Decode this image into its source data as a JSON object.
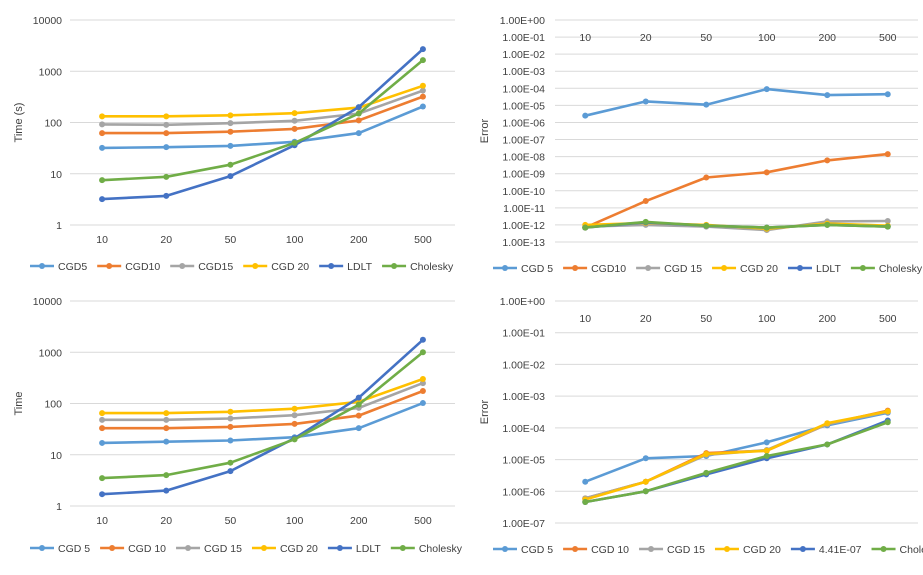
{
  "chart_data": [
    {
      "type": "line",
      "panel": "top-left",
      "ylabel": "Time (s)",
      "yscale": "log",
      "ylim": [
        1,
        10000
      ],
      "ytick_labels": [
        "1",
        "10",
        "100",
        "1000",
        "10000"
      ],
      "ytick_values": [
        1,
        10,
        100,
        1000,
        10000
      ],
      "categories": [
        "10",
        "20",
        "50",
        "100",
        "200",
        "500"
      ],
      "x_axis_position": "bottom",
      "grid": true,
      "legend": "bottom",
      "series": [
        {
          "name": "CGD5",
          "color": "#5B9BD5",
          "values": [
            32,
            33,
            35,
            42,
            62,
            205
          ]
        },
        {
          "name": "CGD10",
          "color": "#ED7D31",
          "values": [
            62,
            62,
            66,
            75,
            110,
            320
          ]
        },
        {
          "name": "CGD15",
          "color": "#A5A5A5",
          "values": [
            92,
            90,
            97,
            108,
            150,
            420
          ]
        },
        {
          "name": "CGD 20",
          "color": "#FFC000",
          "values": [
            132,
            132,
            138,
            152,
            195,
            520
          ]
        },
        {
          "name": "LDLT",
          "color": "#4472C4",
          "values": [
            3.2,
            3.7,
            9,
            36,
            200,
            2700
          ]
        },
        {
          "name": "Cholesky",
          "color": "#70AD47",
          "values": [
            7.5,
            8.7,
            15,
            40,
            150,
            1650
          ]
        }
      ]
    },
    {
      "type": "line",
      "panel": "top-right",
      "ylabel": "Error",
      "yscale": "log",
      "ylim": [
        1e-13,
        1
      ],
      "ytick_labels": [
        "1.00E-13",
        "1.00E-12",
        "1.00E-11",
        "1.00E-10",
        "1.00E-09",
        "1.00E-08",
        "1.00E-07",
        "1.00E-06",
        "1.00E-05",
        "1.00E-04",
        "1.00E-03",
        "1.00E-02",
        "1.00E-01",
        "1.00E+00"
      ],
      "ytick_values": [
        1e-13,
        1e-12,
        1e-11,
        1e-10,
        1e-09,
        1e-08,
        1e-07,
        1e-06,
        1e-05,
        0.0001,
        0.001,
        0.01,
        0.1,
        1
      ],
      "categories": [
        "10",
        "20",
        "50",
        "100",
        "200",
        "500"
      ],
      "x_axis_position": "top",
      "grid": true,
      "legend": "bottom",
      "series": [
        {
          "name": "CGD 5",
          "color": "#5B9BD5",
          "values": [
            2.5e-06,
            1.7e-05,
            1.1e-05,
            9e-05,
            4e-05,
            4.5e-05
          ]
        },
        {
          "name": "CGD10",
          "color": "#ED7D31",
          "values": [
            7e-13,
            2.5e-11,
            6e-10,
            1.2e-09,
            6e-09,
            1.4e-08
          ]
        },
        {
          "name": "CGD 15",
          "color": "#A5A5A5",
          "values": [
            8e-13,
            1e-12,
            8e-13,
            5e-13,
            1.6e-12,
            1.7e-12
          ]
        },
        {
          "name": "CGD 20",
          "color": "#FFC000",
          "values": [
            1e-12,
            1.3e-12,
            1e-12,
            6e-13,
            1.2e-12,
            9e-13
          ]
        },
        {
          "name": "LDLT",
          "color": "#4472C4",
          "values": [
            7e-13,
            1.4e-12,
            9e-13,
            7e-13,
            1e-12,
            8e-13
          ]
        },
        {
          "name": "Cholesky",
          "color": "#70AD47",
          "values": [
            7e-13,
            1.5e-12,
            9e-13,
            7e-13,
            1e-12,
            8e-13
          ]
        }
      ]
    },
    {
      "type": "line",
      "panel": "bottom-left",
      "ylabel": "Time",
      "yscale": "log",
      "ylim": [
        1,
        10000
      ],
      "ytick_labels": [
        "1",
        "10",
        "100",
        "1000",
        "10000"
      ],
      "ytick_values": [
        1,
        10,
        100,
        1000,
        10000
      ],
      "categories": [
        "10",
        "20",
        "50",
        "100",
        "200",
        "500"
      ],
      "x_axis_position": "bottom",
      "grid": true,
      "legend": "bottom",
      "series": [
        {
          "name": "CGD 5",
          "color": "#5B9BD5",
          "values": [
            17,
            18,
            19,
            22,
            33,
            102
          ]
        },
        {
          "name": "CGD 10",
          "color": "#ED7D31",
          "values": [
            33,
            33,
            35,
            40,
            58,
            175
          ]
        },
        {
          "name": "CGD 15",
          "color": "#A5A5A5",
          "values": [
            48,
            48,
            51,
            59,
            82,
            250
          ]
        },
        {
          "name": "CGD 20",
          "color": "#FFC000",
          "values": [
            65,
            65,
            69,
            79,
            108,
            300
          ]
        },
        {
          "name": "LDLT",
          "color": "#4472C4",
          "values": [
            1.7,
            2,
            4.8,
            21,
            130,
            1750
          ]
        },
        {
          "name": "Cholesky",
          "color": "#70AD47",
          "values": [
            3.5,
            4,
            7,
            20,
            95,
            1000
          ]
        }
      ]
    },
    {
      "type": "line",
      "panel": "bottom-right",
      "ylabel": "Error",
      "yscale": "log",
      "ylim": [
        1e-07,
        1
      ],
      "ytick_labels": [
        "1.00E-07",
        "1.00E-06",
        "1.00E-05",
        "1.00E-04",
        "1.00E-03",
        "1.00E-02",
        "1.00E-01",
        "1.00E+00"
      ],
      "ytick_values": [
        1e-07,
        1e-06,
        1e-05,
        0.0001,
        0.001,
        0.01,
        0.1,
        1
      ],
      "categories": [
        "10",
        "20",
        "50",
        "100",
        "200",
        "500"
      ],
      "x_axis_position": "top",
      "grid": true,
      "legend": "bottom",
      "series": [
        {
          "name": "CGD 5",
          "color": "#5B9BD5",
          "values": [
            2e-06,
            1.1e-05,
            1.3e-05,
            3.5e-05,
            0.00012,
            0.0003
          ]
        },
        {
          "name": "CGD 10",
          "color": "#ED7D31",
          "values": [
            6e-07,
            2e-06,
            1.6e-05,
            1.9e-05,
            0.00013,
            0.00035
          ]
        },
        {
          "name": "CGD 15",
          "color": "#A5A5A5",
          "values": [
            6e-07,
            2e-06,
            1.4e-05,
            2e-05,
            0.00013,
            0.00032
          ]
        },
        {
          "name": "CGD 20",
          "color": "#FFC000",
          "values": [
            5.5e-07,
            2e-06,
            1.5e-05,
            1.9e-05,
            0.00014,
            0.00033
          ]
        },
        {
          "name": "4.41E-07",
          "color": "#4472C4",
          "values": [
            4.6e-07,
            1e-06,
            3.4e-06,
            1.1e-05,
            3e-05,
            0.00017
          ]
        },
        {
          "name": "Cholesky",
          "color": "#70AD47",
          "values": [
            4.6e-07,
            1e-06,
            3.8e-06,
            1.3e-05,
            3e-05,
            0.00015
          ]
        }
      ]
    }
  ]
}
